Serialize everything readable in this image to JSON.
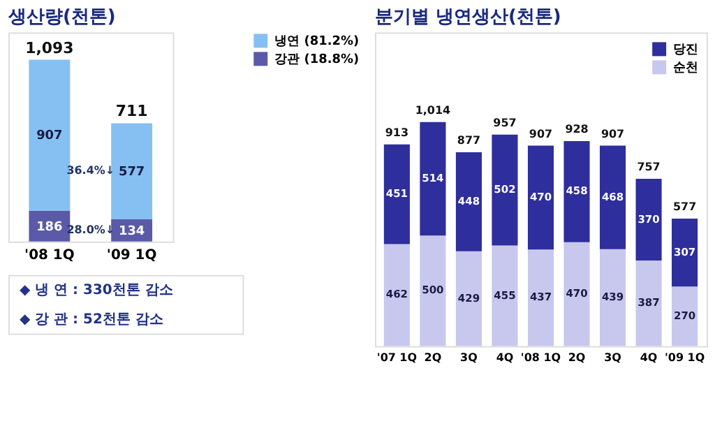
{
  "chart_data": [
    {
      "type": "bar",
      "title": "생산량(천톤)",
      "categories": [
        "'08 1Q",
        "'09 1Q"
      ],
      "stacked": true,
      "data_labels": true,
      "tick_labels": "x",
      "grid": false,
      "legend": "right",
      "series": [
        {
          "name": "강관 (18.8%)",
          "color": "#5a5aa8",
          "values": [
            186,
            134
          ]
        },
        {
          "name": "냉연 (81.2%)",
          "color": "#86c0f2",
          "values": [
            907,
            577
          ]
        }
      ],
      "totals": [
        "1,093",
        "711"
      ],
      "annotations": [
        "36.4%↓",
        "28.0%↓",
        "◆ 냉 연 : 330천톤 감소",
        "◆ 강 관 : 52천톤 감소"
      ]
    },
    {
      "type": "bar",
      "title": "분기별 냉연생산(천톤)",
      "categories": [
        "'07 1Q",
        "2Q",
        "3Q",
        "4Q",
        "'08 1Q",
        "2Q",
        "3Q",
        "4Q",
        "'09 1Q"
      ],
      "stacked": true,
      "data_labels": true,
      "tick_labels": "x",
      "grid": false,
      "legend": "top right",
      "series": [
        {
          "name": "순천",
          "color": "#c8c8ee",
          "values": [
            462,
            500,
            429,
            455,
            437,
            470,
            439,
            387,
            270
          ]
        },
        {
          "name": "당진",
          "color": "#2e2e9c",
          "values": [
            451,
            514,
            448,
            502,
            470,
            458,
            468,
            370,
            307
          ]
        }
      ],
      "totals": [
        "913",
        "1,014",
        "877",
        "957",
        "907",
        "928",
        "907",
        "757",
        "577"
      ]
    }
  ]
}
